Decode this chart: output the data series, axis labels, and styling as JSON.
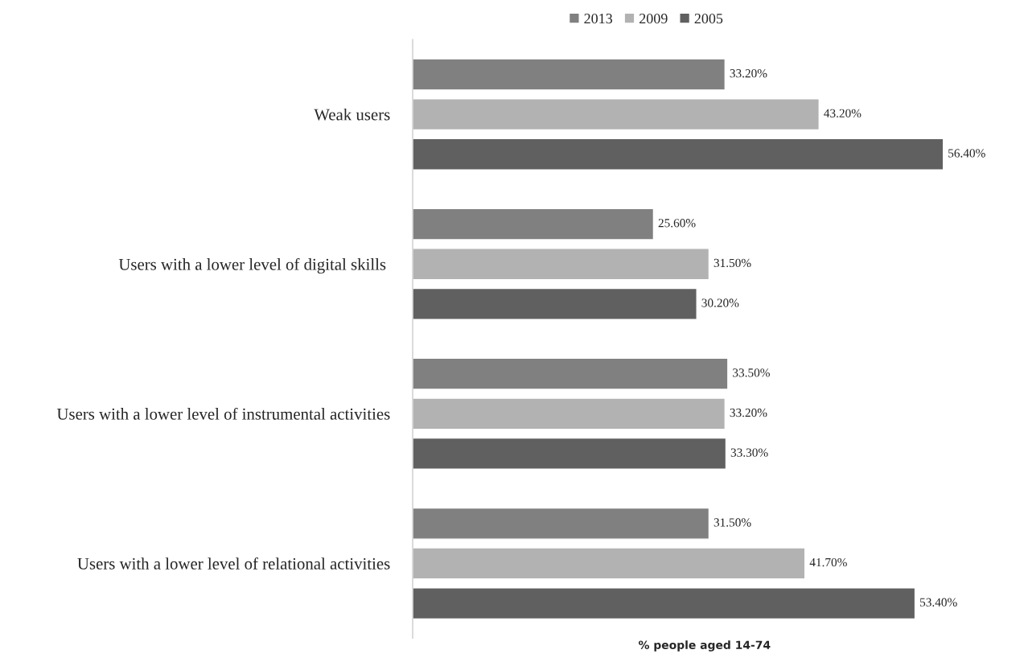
{
  "chart_data": {
    "type": "bar",
    "orientation": "horizontal",
    "categories": [
      "Weak users",
      "Users with a lower level of digital skills ",
      "Users with a lower level of instrumental activities",
      "Users with a lower level of relational activities"
    ],
    "series": [
      {
        "name": "2013",
        "color": "#808080",
        "values": [
          33.2,
          25.6,
          33.5,
          31.5
        ],
        "value_labels": [
          "33.20%",
          "25.60%",
          "33.50%",
          "31.50%"
        ]
      },
      {
        "name": "2009",
        "color": "#b2b2b2",
        "values": [
          43.2,
          31.5,
          33.2,
          41.7
        ],
        "value_labels": [
          "43.20%",
          "31.50%",
          "33.20%",
          "41.70%"
        ]
      },
      {
        "name": "2005",
        "color": "#606060",
        "values": [
          56.4,
          30.2,
          33.3,
          53.4
        ],
        "value_labels": [
          "56.40%",
          "30.20%",
          "33.30%",
          "53.40%"
        ]
      }
    ],
    "xlabel": "% people aged 14-74",
    "legend": "top",
    "grid": false,
    "tick_labels": "y"
  }
}
